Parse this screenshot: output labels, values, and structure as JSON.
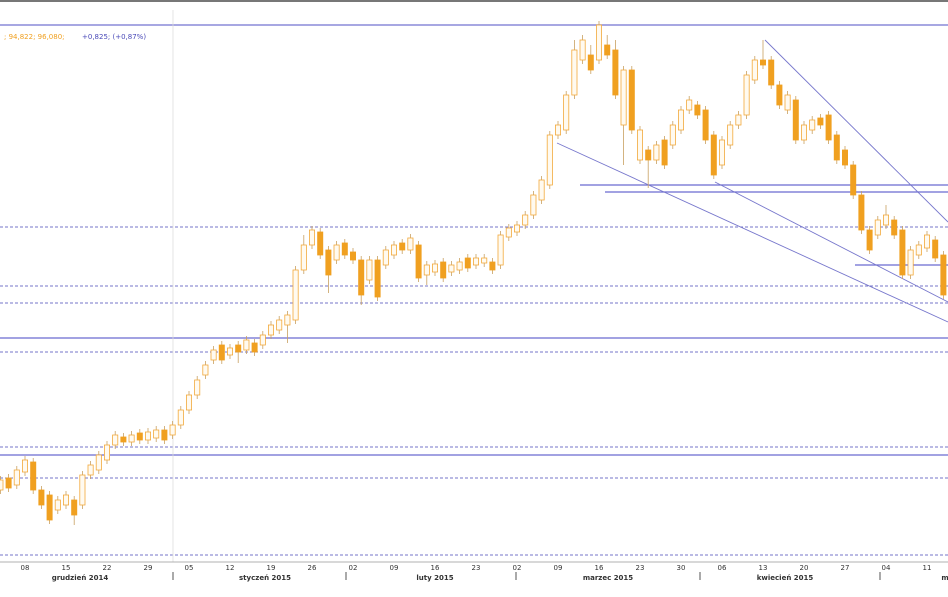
{
  "chart_data": {
    "type": "candlestick",
    "header_price": "; 94,822; 96,080;",
    "header_change": "+0,825; (+0,87%)",
    "months": [
      "grudzień 2014",
      "styczeń 2015",
      "luty 2015",
      "marzec 2015",
      "kwiecień 2015",
      "m"
    ],
    "categories": [
      null,
      null,
      null,
      "08",
      null,
      null,
      null,
      null,
      "15",
      null,
      null,
      null,
      null,
      "22",
      null,
      null,
      null,
      null,
      "29",
      null,
      null,
      null,
      null,
      "05",
      null,
      null,
      null,
      null,
      "12",
      null,
      null,
      null,
      null,
      "19",
      null,
      null,
      null,
      null,
      "26",
      null,
      null,
      null,
      null,
      "02",
      null,
      null,
      null,
      null,
      "09",
      null,
      null,
      null,
      null,
      "16",
      null,
      null,
      null,
      null,
      "23",
      null,
      null,
      null,
      null,
      "02",
      null,
      null,
      null,
      null,
      "09",
      null,
      null,
      null,
      null,
      "16",
      null,
      null,
      null,
      null,
      "23",
      null,
      null,
      null,
      null,
      "30",
      null,
      null,
      null,
      null,
      "06",
      null,
      null,
      null,
      null,
      "13",
      null,
      null,
      null,
      null,
      "20",
      null,
      null,
      null,
      null,
      "27",
      null,
      null,
      null,
      null,
      "04",
      null,
      null,
      null,
      null,
      "11",
      null,
      null
    ],
    "open": [
      103,
      115,
      108,
      121,
      131,
      103,
      98,
      83,
      88,
      93,
      88,
      118,
      123,
      133,
      148,
      156,
      151,
      160,
      153,
      155,
      163,
      158,
      168,
      183,
      198,
      218,
      233,
      248,
      238,
      248,
      243,
      250,
      248,
      258,
      263,
      268,
      273,
      323,
      348,
      361,
      343,
      333,
      350,
      341,
      333,
      313,
      333,
      328,
      338,
      350,
      343,
      348,
      318,
      321,
      331,
      321,
      323,
      335,
      328,
      330,
      331,
      328,
      356,
      361,
      368,
      378,
      393,
      408,
      458,
      463,
      498,
      533,
      538,
      533,
      548,
      543,
      468,
      523,
      433,
      443,
      433,
      453,
      448,
      463,
      483,
      488,
      483,
      458,
      428,
      448,
      468,
      478,
      513,
      533,
      533,
      508,
      483,
      493,
      453,
      463,
      475,
      478,
      458,
      443,
      428,
      398,
      363,
      358,
      368,
      373,
      363,
      318,
      338,
      345,
      353,
      338
    ],
    "high": [
      117,
      119,
      127,
      137,
      135,
      107,
      102,
      97,
      102,
      97,
      122,
      132,
      142,
      152,
      162,
      160,
      162,
      164,
      165,
      167,
      167,
      172,
      187,
      202,
      217,
      232,
      247,
      252,
      249,
      252,
      257,
      254,
      262,
      272,
      277,
      282,
      327,
      358,
      367,
      365,
      347,
      352,
      354,
      345,
      337,
      337,
      337,
      347,
      352,
      354,
      359,
      352,
      332,
      333,
      335,
      332,
      335,
      339,
      339,
      339,
      335,
      362,
      369,
      372,
      382,
      402,
      417,
      462,
      472,
      502,
      553,
      558,
      548,
      572,
      558,
      553,
      527,
      527,
      467,
      447,
      452,
      457,
      472,
      487,
      497,
      492,
      487,
      462,
      457,
      472,
      482,
      522,
      537,
      553,
      537,
      512,
      502,
      497,
      472,
      477,
      479,
      482,
      462,
      447,
      432,
      402,
      367,
      377,
      388,
      377,
      367,
      347,
      352,
      362,
      357,
      342
    ],
    "low": [
      99,
      101,
      104,
      117,
      99,
      84,
      69,
      79,
      84,
      68,
      84,
      114,
      119,
      129,
      144,
      147,
      147,
      149,
      149,
      151,
      149,
      154,
      164,
      179,
      194,
      214,
      229,
      229,
      234,
      230,
      239,
      237,
      244,
      254,
      259,
      250,
      269,
      319,
      344,
      334,
      300,
      329,
      334,
      329,
      288,
      309,
      292,
      324,
      334,
      339,
      339,
      311,
      308,
      317,
      311,
      317,
      319,
      321,
      324,
      326,
      319,
      324,
      352,
      357,
      364,
      374,
      389,
      404,
      454,
      459,
      494,
      529,
      519,
      529,
      534,
      494,
      428,
      459,
      429,
      405,
      429,
      424,
      444,
      459,
      479,
      474,
      449,
      414,
      424,
      444,
      464,
      474,
      509,
      524,
      504,
      484,
      479,
      449,
      449,
      459,
      464,
      449,
      429,
      424,
      394,
      359,
      339,
      354,
      364,
      354,
      314,
      314,
      334,
      341,
      331,
      294
    ],
    "close": [
      113,
      105,
      123,
      133,
      103,
      88,
      73,
      93,
      98,
      78,
      118,
      128,
      138,
      148,
      158,
      151,
      158,
      153,
      161,
      163,
      153,
      168,
      183,
      198,
      213,
      228,
      243,
      233,
      245,
      241,
      253,
      241,
      258,
      268,
      273,
      278,
      323,
      348,
      363,
      338,
      318,
      348,
      338,
      333,
      298,
      333,
      296,
      343,
      348,
      343,
      355,
      315,
      328,
      329,
      315,
      328,
      331,
      325,
      335,
      335,
      323,
      358,
      365,
      368,
      378,
      398,
      413,
      458,
      468,
      498,
      543,
      553,
      523,
      568,
      538,
      498,
      523,
      463,
      463,
      433,
      448,
      428,
      468,
      483,
      493,
      478,
      453,
      418,
      453,
      468,
      478,
      518,
      533,
      528,
      508,
      488,
      498,
      453,
      468,
      473,
      468,
      453,
      433,
      428,
      398,
      363,
      343,
      373,
      378,
      358,
      318,
      343,
      348,
      358,
      335,
      298
    ],
    "up_color": "#f2a93b",
    "down_color": "#f0a020",
    "ylim": [
      0,
      593
    ]
  }
}
